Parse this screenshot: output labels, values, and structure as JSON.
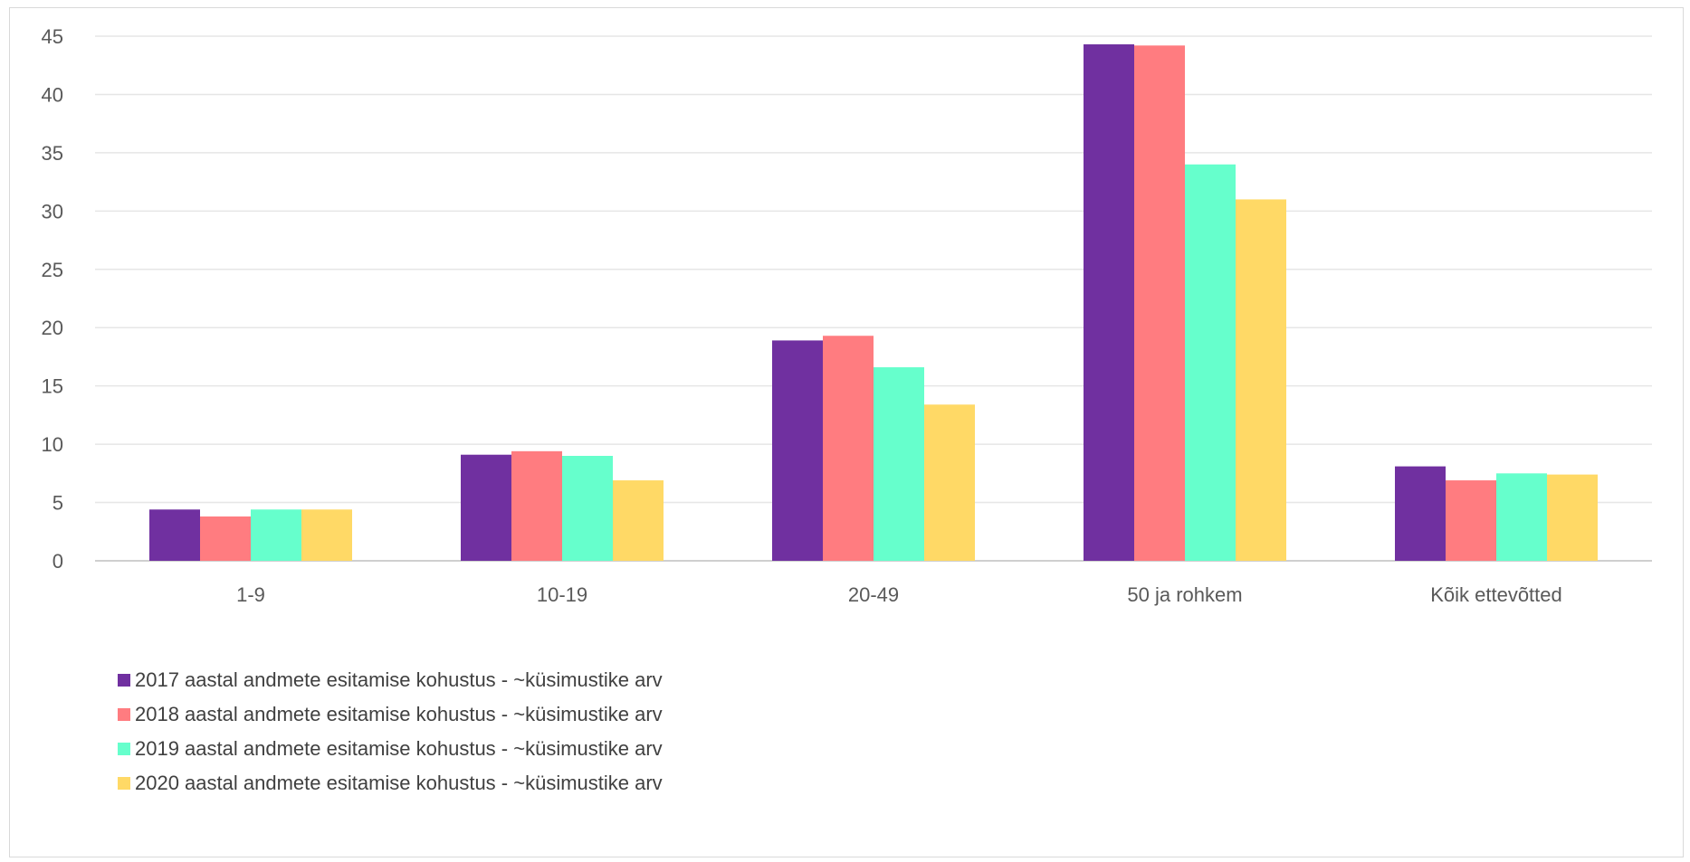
{
  "chart_data": {
    "type": "bar",
    "categories": [
      "1-9",
      "10-19",
      "20-49",
      "50 ja rohkem",
      "Kõik ettevõtted"
    ],
    "ylim": [
      0,
      45
    ],
    "yticks": [
      0,
      5,
      10,
      15,
      20,
      25,
      30,
      35,
      40,
      45
    ],
    "grid": true,
    "legend_position": "bottom-left",
    "title": "",
    "xlabel": "",
    "ylabel": "",
    "series": [
      {
        "name": "2017 aastal andmete esitamise kohustus - ~küsimustike arv",
        "color": "#7030A0",
        "values": [
          4.4,
          9.1,
          18.9,
          44.3,
          8.1
        ]
      },
      {
        "name": "2018 aastal andmete esitamise kohustus - ~küsimustike arv",
        "color": "#FF7C80",
        "values": [
          3.8,
          9.4,
          19.3,
          44.2,
          6.9
        ]
      },
      {
        "name": "2019 aastal andmete esitamise kohustus - ~küsimustike arv",
        "color": "#66FFCC",
        "values": [
          4.4,
          9.0,
          16.6,
          34.0,
          7.5
        ]
      },
      {
        "name": "2020 aastal andmete esitamise kohustus - ~küsimustike arv",
        "color": "#FFD966",
        "values": [
          4.4,
          6.9,
          13.4,
          31.0,
          7.4
        ]
      }
    ]
  }
}
